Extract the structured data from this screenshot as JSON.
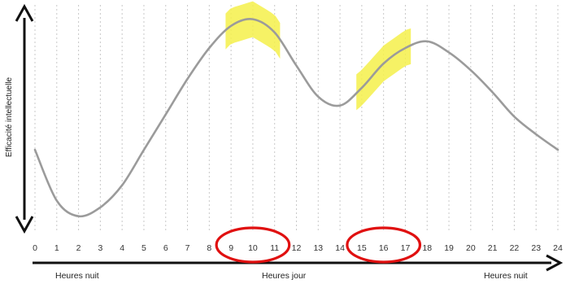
{
  "chart_data": {
    "type": "line",
    "title": "",
    "ylabel": "Efficacité intellectuelle",
    "xlabel": "",
    "x_ticks": [
      "0",
      "1",
      "2",
      "3",
      "4",
      "5",
      "6",
      "7",
      "8",
      "9",
      "10",
      "11",
      "12",
      "13",
      "14",
      "15",
      "16",
      "17",
      "18",
      "19",
      "20",
      "21",
      "22",
      "23",
      "24"
    ],
    "xlim": [
      0,
      24
    ],
    "ylim": [
      0,
      100
    ],
    "grid": "vertical dashed lines at each hour",
    "series": [
      {
        "x": [
          0,
          1,
          2,
          3,
          4,
          5,
          6,
          7,
          8,
          9,
          10,
          11,
          12,
          13,
          14,
          15,
          16,
          17,
          18,
          19,
          20,
          21,
          22,
          23,
          24
        ],
        "y": [
          36,
          13,
          6,
          10,
          20,
          36,
          52,
          68,
          82,
          92,
          95,
          89,
          74,
          60,
          56,
          64,
          75,
          82,
          85,
          80,
          72,
          62,
          51,
          43,
          36
        ]
      }
    ],
    "period_labels": [
      "Heures nuit",
      "Heures jour",
      "Heures nuit"
    ],
    "highlighted_ranges": [
      {
        "start": 9,
        "end": 11
      },
      {
        "start": 15,
        "end": 17
      }
    ],
    "colors": {
      "line": "#9b9b9b",
      "highlight": "#f5f04a",
      "circle": "#e01010",
      "axis": "#111111"
    }
  }
}
